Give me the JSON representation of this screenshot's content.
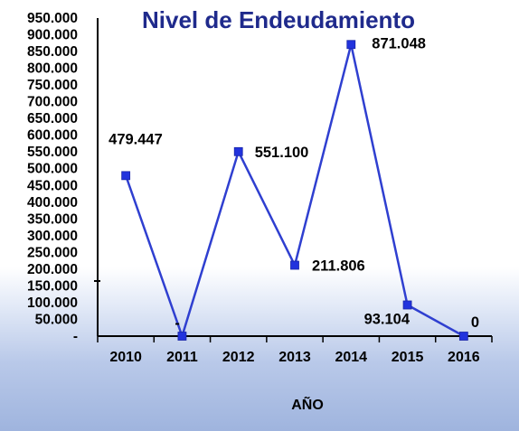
{
  "chart_data": {
    "type": "line",
    "title": "Nivel de Endeudamiento",
    "xlabel": "AÑO",
    "ylabel": "",
    "categories": [
      "2010",
      "2011",
      "2012",
      "2013",
      "2014",
      "2015",
      "2016"
    ],
    "series": [
      {
        "values": [
          479447,
          0,
          551100,
          211806,
          871048,
          93104,
          0
        ],
        "data_labels": [
          "479.447",
          "-",
          "551.100",
          "211.806",
          "871.048",
          "93.104",
          "0"
        ]
      }
    ],
    "y_tick_labels": [
      "-",
      "50.000",
      "100.000",
      "150.000",
      "200.000",
      "250.000",
      "300.000",
      "350.000",
      "400.000",
      "450.000",
      "500.000",
      "550.000",
      "600.000",
      "650.000",
      "700.000",
      "750.000",
      "800.000",
      "850.000",
      "900.000",
      "950.000"
    ],
    "ylim": [
      0,
      950000
    ],
    "grid": false,
    "legend": "none",
    "colors": {
      "line": "#2f3fd0",
      "marker": "#2233dd",
      "title": "#1f2a8c",
      "axis": "#000000"
    }
  }
}
